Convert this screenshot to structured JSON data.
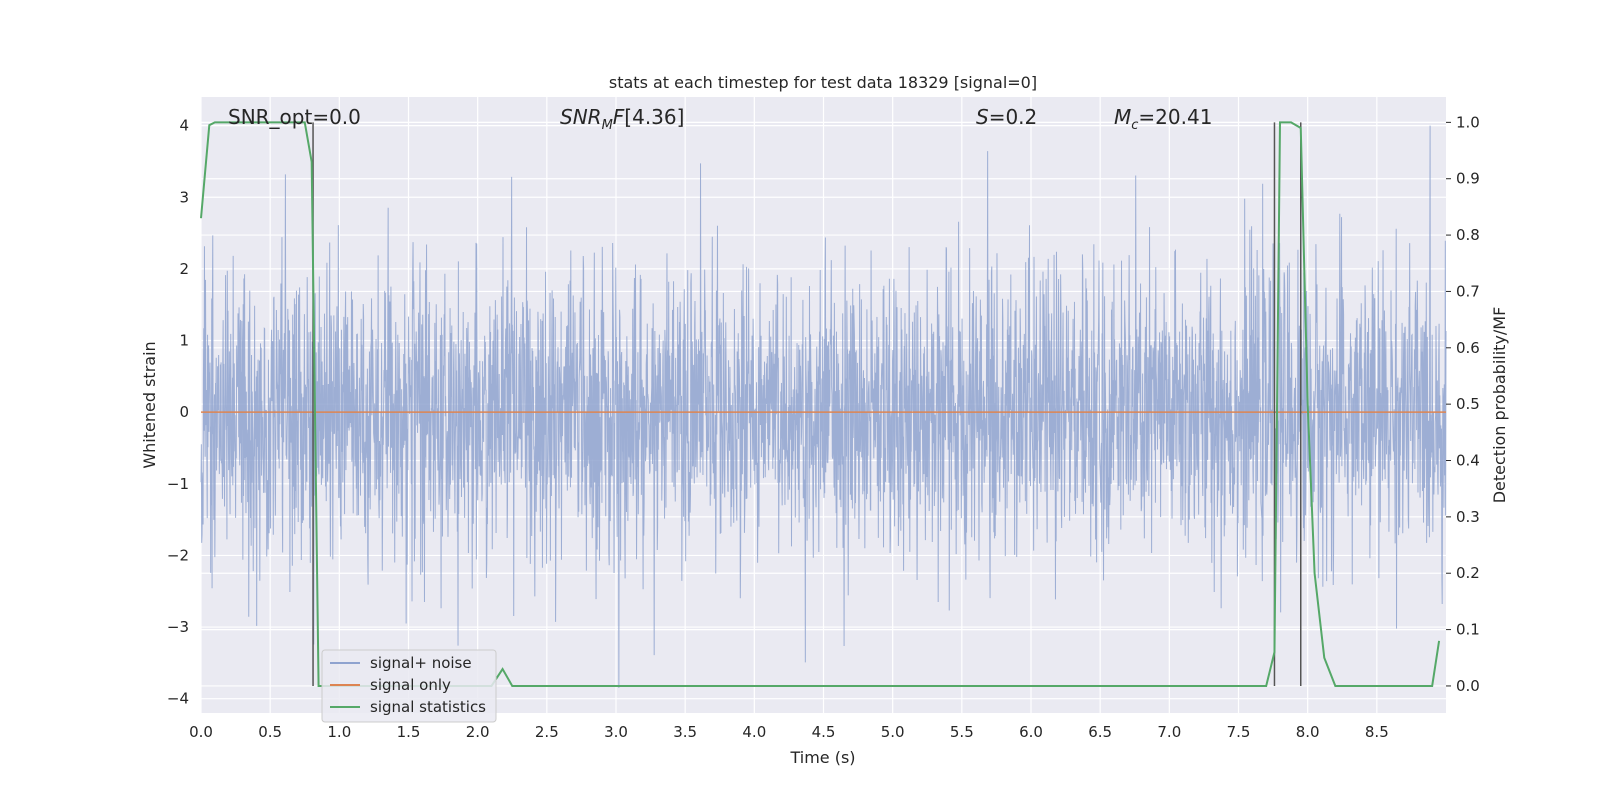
{
  "chart_data": {
    "type": "line",
    "title": "stats at each timestep for test data 18329 [signal=0]",
    "xlabel": "Time (s)",
    "ylabel": "Whitened strain",
    "y2label": "Detection probability/MF",
    "xlim": [
      0.0,
      9.0
    ],
    "ylim": [
      -4.2,
      4.4
    ],
    "y2lim": [
      -0.048,
      1.045
    ],
    "xticks": [
      "0.0",
      "0.5",
      "1.0",
      "1.5",
      "2.0",
      "2.5",
      "3.0",
      "3.5",
      "4.0",
      "4.5",
      "5.0",
      "5.5",
      "6.0",
      "6.5",
      "7.0",
      "7.5",
      "8.0",
      "8.5"
    ],
    "yticks": [
      "4",
      "3",
      "2",
      "1",
      "0",
      "−1",
      "−2",
      "−3",
      "−4"
    ],
    "y2ticks": [
      "1.0",
      "0.9",
      "0.8",
      "0.7",
      "0.6",
      "0.5",
      "0.4",
      "0.3",
      "0.2",
      "0.1",
      "0.0"
    ],
    "grid": true,
    "legend_position": "lower-left",
    "annotations": {
      "snr_opt": "SNR_opt=0.0",
      "snr_mf": "[4.36]",
      "s": "=0.2",
      "mc": "=20.41"
    },
    "vertical_lines_x": [
      0.81,
      7.76,
      7.95
    ],
    "series": [
      {
        "name": "signal+ noise",
        "color": "#8fa3cf",
        "description_values": "white-noise strain, amplitude envelope about ±2.5, peaks up to 4.0 and down to -3.85",
        "y_min": -3.85,
        "y_max": 4.0
      },
      {
        "name": "signal only",
        "color": "#dd8452",
        "values_constant": 0.0
      },
      {
        "name": "signal statistics",
        "color": "#55a868",
        "x": [
          0.0,
          0.06,
          0.1,
          0.2,
          0.3,
          0.4,
          0.5,
          0.6,
          0.7,
          0.75,
          0.8,
          0.85,
          0.9,
          2.1,
          2.18,
          2.25,
          2.3,
          3.0,
          4.0,
          5.0,
          6.0,
          7.0,
          7.7,
          7.76,
          7.8,
          7.84,
          7.88,
          7.95,
          8.0,
          8.05,
          8.12,
          8.2,
          8.25,
          8.9,
          8.95
        ],
        "y2": [
          0.83,
          0.995,
          1.0,
          1.0,
          1.0,
          1.0,
          1.0,
          1.0,
          1.0,
          1.0,
          0.93,
          0.0,
          0.0,
          0.0,
          0.03,
          0.0,
          0.0,
          0.0,
          0.0,
          0.0,
          0.0,
          0.0,
          0.0,
          0.06,
          1.0,
          1.0,
          1.0,
          0.99,
          0.5,
          0.2,
          0.05,
          0.0,
          0.0,
          0.0,
          0.08
        ]
      }
    ]
  }
}
